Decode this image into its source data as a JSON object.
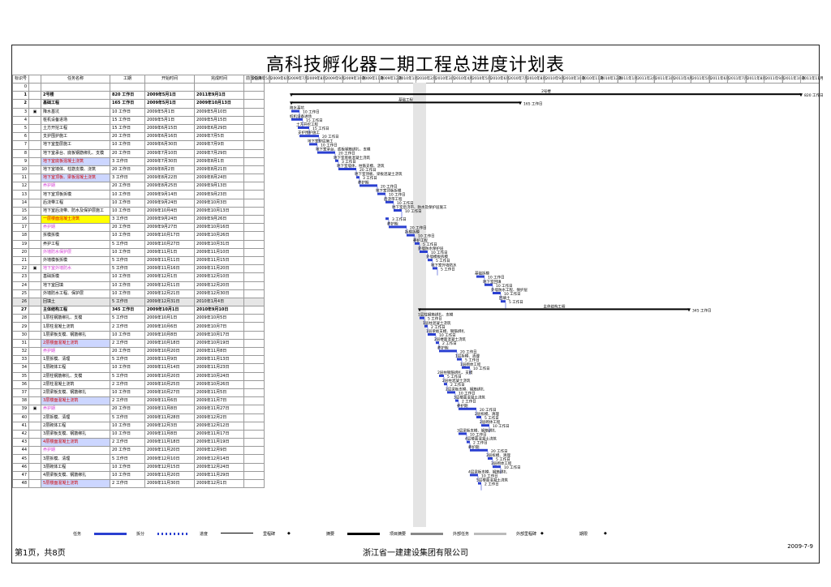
{
  "title": "高科技孵化器二期工程总进度计划表",
  "columns": [
    "标识号",
    "",
    "任务名称",
    "工期",
    "开始时间",
    "完成时间",
    "前置任务"
  ],
  "timescale": [
    "2009年5月",
    "2009年6月",
    "2009年7月",
    "2009年8月",
    "2009年9月",
    "2009年10月",
    "2009年11月",
    "2009年12月",
    "2010年1月",
    "2010年2月",
    "2010年3月",
    "2010年4月",
    "2010年5月",
    "2010年6月",
    "2010年7月",
    "2010年8月",
    "2010年9月",
    "2010年10月",
    "2010年11月",
    "2010年12月",
    "2011年1月",
    "2011年2月",
    "2011年3月",
    "2011年4月",
    "2011年5月",
    "2011年6月",
    "2011年7月",
    "2011年8月",
    "2011年9月",
    "2011年10月",
    "2011年11月"
  ],
  "rows": [
    {
      "id": "0",
      "icon": "",
      "name": "",
      "dur": "",
      "start": "",
      "end": "",
      "pred": "",
      "style": "blank"
    },
    {
      "id": "1",
      "icon": "",
      "name": "2号楼",
      "dur": "820 工作日",
      "start": "2009年5月1日",
      "end": "2011年9月1日",
      "pred": "",
      "style": "sum"
    },
    {
      "id": "2",
      "icon": "",
      "name": "基础工程",
      "dur": "165 工作日",
      "start": "2009年5月1日",
      "end": "2009年10月13日",
      "pred": "",
      "style": "sum"
    },
    {
      "id": "3",
      "icon": "note",
      "name": "降水基坑",
      "dur": "10 工作日",
      "start": "2009年5月1日",
      "end": "2009年5月10日",
      "pred": "",
      "style": ""
    },
    {
      "id": "4",
      "icon": "",
      "name": "桩机设备进场",
      "dur": "15 工作日",
      "start": "2009年5月1日",
      "end": "2009年5月15日",
      "pred": "",
      "style": ""
    },
    {
      "id": "5",
      "icon": "",
      "name": "土方开挖工程",
      "dur": "15 工作日",
      "start": "2009年6月15日",
      "end": "2009年6月29日",
      "pred": "",
      "style": ""
    },
    {
      "id": "6",
      "icon": "",
      "name": "支护围护施工",
      "dur": "20 工作日",
      "start": "2009年6月16日",
      "end": "2009年7月5日",
      "pred": "",
      "style": ""
    },
    {
      "id": "7",
      "icon": "",
      "name": "地下室垫层施工",
      "dur": "10 工作日",
      "start": "2009年6月30日",
      "end": "2009年7月9日",
      "pred": "",
      "style": ""
    },
    {
      "id": "8",
      "icon": "",
      "name": "地下室承台、底板钢筋绑扎、支模",
      "dur": "20 工作日",
      "start": "2009年7月10日",
      "end": "2009年7月29日",
      "pred": "",
      "style": ""
    },
    {
      "id": "9",
      "icon": "",
      "name": "地下室底板混凝土浇筑",
      "dur": "3 工作日",
      "start": "2009年7月30日",
      "end": "2009年8月1日",
      "pred": "",
      "style": "hl-b"
    },
    {
      "id": "10",
      "icon": "",
      "name": "地下室墙体、柱筋支模、浇筑",
      "dur": "20 工作日",
      "start": "2009年8月2日",
      "end": "2009年8月21日",
      "pred": "",
      "style": ""
    },
    {
      "id": "11",
      "icon": "",
      "name": "地下室顶板、梁板混凝土浇筑",
      "dur": "3 工作日",
      "start": "2009年8月22日",
      "end": "2009年8月24日",
      "pred": "",
      "style": "hl-b"
    },
    {
      "id": "12",
      "icon": "",
      "name": "养护期",
      "dur": "20 工作日",
      "start": "2009年8月25日",
      "end": "2009年9月13日",
      "pred": "",
      "style": "pink"
    },
    {
      "id": "13",
      "icon": "",
      "name": "地下室顶板拆模",
      "dur": "10 工作日",
      "start": "2009年9月14日",
      "end": "2009年9月23日",
      "pred": "",
      "style": ""
    },
    {
      "id": "14",
      "icon": "",
      "name": "后浇带工程",
      "dur": "10 工作日",
      "start": "2009年9月24日",
      "end": "2009年10月3日",
      "pred": "",
      "style": ""
    },
    {
      "id": "15",
      "icon": "",
      "name": "地下室后浇带、防水及保护层施工",
      "dur": "10 工作日",
      "start": "2009年10月4日",
      "end": "2009年10月13日",
      "pred": "",
      "style": ""
    },
    {
      "id": "16",
      "icon": "",
      "name": "一层楼面混凝土浇筑",
      "dur": "3 工作日",
      "start": "2009年9月24日",
      "end": "2009年9月26日",
      "pred": "",
      "style": "hl-y"
    },
    {
      "id": "17",
      "icon": "",
      "name": "养护期",
      "dur": "20 工作日",
      "start": "2009年9月27日",
      "end": "2009年10月16日",
      "pred": "",
      "style": "pink"
    },
    {
      "id": "18",
      "icon": "",
      "name": "拆模拆模",
      "dur": "10 工作日",
      "start": "2009年10月17日",
      "end": "2009年10月26日",
      "pred": "",
      "style": ""
    },
    {
      "id": "19",
      "icon": "",
      "name": "养护工程",
      "dur": "5 工作日",
      "start": "2009年10月27日",
      "end": "2009年10月31日",
      "pred": "",
      "style": ""
    },
    {
      "id": "20",
      "icon": "",
      "name": "外墙防水保护层",
      "dur": "10 工作日",
      "start": "2009年11月1日",
      "end": "2009年11月10日",
      "pred": "",
      "style": "pink"
    },
    {
      "id": "21",
      "icon": "",
      "name": "外墙模板拆模",
      "dur": "5 工作日",
      "start": "2009年11月11日",
      "end": "2009年11月15日",
      "pred": "",
      "style": ""
    },
    {
      "id": "22",
      "icon": "note",
      "name": "地下室外墙防水",
      "dur": "5 工作日",
      "start": "2009年11月16日",
      "end": "2009年11月20日",
      "pred": "",
      "style": "pink"
    },
    {
      "id": "23",
      "icon": "",
      "name": "基础拆模",
      "dur": "10 工作日",
      "start": "2009年12月1日",
      "end": "2009年12月10日",
      "pred": "",
      "style": ""
    },
    {
      "id": "24",
      "icon": "",
      "name": "地下室回填",
      "dur": "10 工作日",
      "start": "2009年12月11日",
      "end": "2009年12月20日",
      "pred": "",
      "style": ""
    },
    {
      "id": "25",
      "icon": "",
      "name": "外墙防水工程、保护层",
      "dur": "10 工作日",
      "start": "2009年12月21日",
      "end": "2009年12月30日",
      "pred": "",
      "style": ""
    },
    {
      "id": "26",
      "icon": "",
      "name": "回填土",
      "dur": "5 工作日",
      "start": "2009年12月31日",
      "end": "2010年1月4日",
      "pred": "",
      "style": "hl-g"
    },
    {
      "id": "27",
      "icon": "",
      "name": "主体结构工程",
      "dur": "345 工作日",
      "start": "2009年10月1日",
      "end": "2010年9月10日",
      "pred": "",
      "style": "sum"
    },
    {
      "id": "28",
      "icon": "",
      "name": "1层柱钢筋绑扎、支模",
      "dur": "5 工作日",
      "start": "2009年10月1日",
      "end": "2009年10月5日",
      "pred": "",
      "style": ""
    },
    {
      "id": "29",
      "icon": "",
      "name": "1层柱混凝土浇筑",
      "dur": "2 工作日",
      "start": "2009年10月6日",
      "end": "2009年10月7日",
      "pred": "",
      "style": ""
    },
    {
      "id": "30",
      "icon": "",
      "name": "1层梁板支模、钢筋绑扎",
      "dur": "10 工作日",
      "start": "2009年10月8日",
      "end": "2009年10月17日",
      "pred": "",
      "style": ""
    },
    {
      "id": "31",
      "icon": "",
      "name": "2层楼面混凝土浇筑",
      "dur": "2 工作日",
      "start": "2009年10月18日",
      "end": "2009年10月19日",
      "pred": "",
      "style": "hl-b"
    },
    {
      "id": "32",
      "icon": "",
      "name": "养护期",
      "dur": "20 工作日",
      "start": "2009年10月20日",
      "end": "2009年11月8日",
      "pred": "",
      "style": "pink"
    },
    {
      "id": "33",
      "icon": "",
      "name": "1层拆模、清理",
      "dur": "5 工作日",
      "start": "2009年11月9日",
      "end": "2009年11月13日",
      "pred": "",
      "style": ""
    },
    {
      "id": "34",
      "icon": "",
      "name": "1层砌体工程",
      "dur": "10 工作日",
      "start": "2009年11月14日",
      "end": "2009年11月23日",
      "pred": "",
      "style": ""
    },
    {
      "id": "35",
      "icon": "",
      "name": "2层柱钢筋绑扎、支模",
      "dur": "5 工作日",
      "start": "2009年10月20日",
      "end": "2009年10月24日",
      "pred": "",
      "style": ""
    },
    {
      "id": "36",
      "icon": "",
      "name": "2层柱混凝土浇筑",
      "dur": "2 工作日",
      "start": "2009年10月25日",
      "end": "2009年10月26日",
      "pred": "",
      "style": ""
    },
    {
      "id": "37",
      "icon": "",
      "name": "2层梁板支模、钢筋绑扎",
      "dur": "10 工作日",
      "start": "2009年10月27日",
      "end": "2009年11月5日",
      "pred": "",
      "style": ""
    },
    {
      "id": "38",
      "icon": "",
      "name": "3层楼面混凝土浇筑",
      "dur": "2 工作日",
      "start": "2009年11月6日",
      "end": "2009年11月7日",
      "pred": "",
      "style": "hl-b"
    },
    {
      "id": "39",
      "icon": "note",
      "name": "养护期",
      "dur": "20 工作日",
      "start": "2009年11月8日",
      "end": "2009年11月27日",
      "pred": "",
      "style": "pink"
    },
    {
      "id": "40",
      "icon": "",
      "name": "2层拆模、清理",
      "dur": "5 工作日",
      "start": "2009年11月28日",
      "end": "2009年12月2日",
      "pred": "",
      "style": ""
    },
    {
      "id": "41",
      "icon": "",
      "name": "2层砌体工程",
      "dur": "10 工作日",
      "start": "2009年12月3日",
      "end": "2009年12月12日",
      "pred": "",
      "style": ""
    },
    {
      "id": "42",
      "icon": "",
      "name": "3层梁板支模、钢筋绑扎",
      "dur": "10 工作日",
      "start": "2009年11月8日",
      "end": "2009年11月17日",
      "pred": "",
      "style": ""
    },
    {
      "id": "43",
      "icon": "",
      "name": "4层楼面混凝土浇筑",
      "dur": "2 工作日",
      "start": "2009年11月18日",
      "end": "2009年11月19日",
      "pred": "",
      "style": "hl-b"
    },
    {
      "id": "44",
      "icon": "",
      "name": "养护期",
      "dur": "20 工作日",
      "start": "2009年11月20日",
      "end": "2009年12月9日",
      "pred": "",
      "style": "pink"
    },
    {
      "id": "45",
      "icon": "",
      "name": "3层拆模、清理",
      "dur": "5 工作日",
      "start": "2009年12月10日",
      "end": "2009年12月14日",
      "pred": "",
      "style": ""
    },
    {
      "id": "46",
      "icon": "",
      "name": "3层砌体工程",
      "dur": "10 工作日",
      "start": "2009年12月15日",
      "end": "2009年12月24日",
      "pred": "",
      "style": ""
    },
    {
      "id": "47",
      "icon": "",
      "name": "4层梁板支模、钢筋绑扎",
      "dur": "10 工作日",
      "start": "2009年11月20日",
      "end": "2009年11月29日",
      "pred": "",
      "style": ""
    },
    {
      "id": "48",
      "icon": "",
      "name": "5层楼面混凝土浇筑",
      "dur": "2 工作日",
      "start": "2009年11月30日",
      "end": "2009年12月1日",
      "pred": "",
      "style": "hl-b"
    }
  ],
  "bars": [
    {
      "row": 1,
      "x0": 0,
      "x1": 628,
      "type": "summary",
      "label": "820 工作日",
      "top": "2号楼"
    },
    {
      "row": 2,
      "x0": 0,
      "x1": 282,
      "type": "summary",
      "label": "165 工作日",
      "top": "基础工程"
    },
    {
      "row": 3,
      "x0": 0,
      "x1": 10,
      "type": "task",
      "label": "10 工作日",
      "top": "降水基坑"
    },
    {
      "row": 4,
      "x0": 0,
      "x1": 14,
      "type": "task",
      "label": "15 工作日",
      "top": "桩机设备进场"
    },
    {
      "row": 5,
      "x0": 8,
      "x1": 22,
      "type": "task",
      "label": "15 工作日",
      "top": "土方开挖工程"
    },
    {
      "row": 6,
      "x0": 10,
      "x1": 34,
      "type": "task",
      "label": "20 工作日",
      "top": "支护围护施工"
    },
    {
      "row": 7,
      "x0": 22,
      "x1": 32,
      "type": "task",
      "label": "10 工作日",
      "top": "地下室垫层施工"
    },
    {
      "row": 8,
      "x0": 32,
      "x1": 54,
      "type": "task",
      "label": "20 工作日",
      "top": "地下室承台、底板钢筋绑扎、支模"
    },
    {
      "row": 9,
      "x0": 54,
      "x1": 58,
      "type": "task",
      "label": "3 工作日",
      "top": "地下室底板混凝土浇筑"
    },
    {
      "row": 10,
      "x0": 58,
      "x1": 80,
      "type": "task",
      "label": "20 工作日",
      "top": "地下室墙体、柱筋支模、浇筑"
    },
    {
      "row": 11,
      "x0": 80,
      "x1": 84,
      "type": "task",
      "label": "3 工作日",
      "top": "地下室顶板、梁板混凝土浇筑"
    },
    {
      "row": 12,
      "x0": 84,
      "x1": 106,
      "type": "task",
      "label": "20 工作日",
      "top": "养护期"
    },
    {
      "row": 13,
      "x0": 106,
      "x1": 116,
      "type": "task",
      "label": "10 工作日",
      "top": "地下室顶板拆模"
    },
    {
      "row": 14,
      "x0": 116,
      "x1": 126,
      "type": "task",
      "label": "10 工作日",
      "top": "后浇带工程"
    },
    {
      "row": 15,
      "x0": 126,
      "x1": 136,
      "type": "task",
      "label": "10 工作日",
      "top": "地下室后浇带、防水及保护层施工"
    },
    {
      "row": 16,
      "x0": 116,
      "x1": 120,
      "type": "task",
      "label": "3 工作日",
      "top": ""
    },
    {
      "row": 17,
      "x0": 120,
      "x1": 142,
      "type": "task",
      "label": "20 工作日",
      "top": "养护期"
    },
    {
      "row": 18,
      "x0": 142,
      "x1": 152,
      "type": "task",
      "label": "10 工作日",
      "top": "拆模拆模"
    },
    {
      "row": 19,
      "x0": 152,
      "x1": 158,
      "type": "task",
      "label": "5 工作日",
      "top": "养护工程"
    },
    {
      "row": 20,
      "x0": 158,
      "x1": 168,
      "type": "task",
      "label": "10 工作日",
      "top": "外墙防水保护层"
    },
    {
      "row": 21,
      "x0": 168,
      "x1": 174,
      "type": "task",
      "label": "5 工作日",
      "top": "外墙模板拆模"
    },
    {
      "row": 22,
      "x0": 174,
      "x1": 180,
      "type": "task",
      "label": "5 工作日",
      "top": "地下室外墙防水"
    },
    {
      "row": 23,
      "x0": 228,
      "x1": 238,
      "type": "task",
      "label": "10 工作日",
      "top": "基础拆模"
    },
    {
      "row": 24,
      "x0": 238,
      "x1": 248,
      "type": "task",
      "label": "10 工作日",
      "top": "地下室回填"
    },
    {
      "row": 25,
      "x0": 248,
      "x1": 258,
      "type": "task",
      "label": "10 工作日",
      "top": "外墙防水工程、保护层"
    },
    {
      "row": 26,
      "x0": 258,
      "x1": 264,
      "type": "task",
      "label": "5 工作日",
      "top": "回填土"
    },
    {
      "row": 27,
      "x0": 158,
      "x1": 490,
      "type": "summary",
      "label": "345 工作日",
      "top": "主体结构工程"
    },
    {
      "row": 28,
      "x0": 158,
      "x1": 164,
      "type": "task",
      "label": "5 工作日",
      "top": "1层柱钢筋绑扎、支模"
    },
    {
      "row": 29,
      "x0": 164,
      "x1": 168,
      "type": "task",
      "label": "2 工作日",
      "top": "1层柱混凝土浇筑"
    },
    {
      "row": 30,
      "x0": 168,
      "x1": 178,
      "type": "task",
      "label": "10 工作日",
      "top": "1层梁板支模、钢筋绑扎"
    },
    {
      "row": 31,
      "x0": 178,
      "x1": 182,
      "type": "task",
      "label": "2 工作日",
      "top": "2层楼面混凝土浇筑"
    },
    {
      "row": 32,
      "x0": 182,
      "x1": 204,
      "type": "task",
      "label": "20 工作日",
      "top": "养护期"
    },
    {
      "row": 33,
      "x0": 204,
      "x1": 210,
      "type": "task",
      "label": "5 工作日",
      "top": "1层拆模、清理"
    },
    {
      "row": 34,
      "x0": 210,
      "x1": 220,
      "type": "task",
      "label": "10 工作日",
      "top": "1层砌体工程"
    },
    {
      "row": 35,
      "x0": 182,
      "x1": 188,
      "type": "task",
      "label": "5 工作日",
      "top": "2层柱钢筋绑扎、支模"
    },
    {
      "row": 36,
      "x0": 188,
      "x1": 192,
      "type": "task",
      "label": "2 工作日",
      "top": "2层柱混凝土浇筑"
    },
    {
      "row": 37,
      "x0": 192,
      "x1": 202,
      "type": "task",
      "label": "10 工作日",
      "top": "2层梁板支模、钢筋绑扎"
    },
    {
      "row": 38,
      "x0": 202,
      "x1": 206,
      "type": "task",
      "label": "2 工作日",
      "top": "3层楼面混凝土浇筑"
    },
    {
      "row": 39,
      "x0": 206,
      "x1": 228,
      "type": "task",
      "label": "20 工作日",
      "top": "养护期"
    },
    {
      "row": 40,
      "x0": 228,
      "x1": 234,
      "type": "task",
      "label": "5 工作日",
      "top": "2层拆模、清理"
    },
    {
      "row": 41,
      "x0": 234,
      "x1": 244,
      "type": "task",
      "label": "10 工作日",
      "top": "2层砌体工程"
    },
    {
      "row": 42,
      "x0": 206,
      "x1": 216,
      "type": "task",
      "label": "10 工作日",
      "top": "3层梁板支模、钢筋绑扎"
    },
    {
      "row": 43,
      "x0": 216,
      "x1": 220,
      "type": "task",
      "label": "2 工作日",
      "top": "4层楼面混凝土浇筑"
    },
    {
      "row": 44,
      "x0": 220,
      "x1": 242,
      "type": "task",
      "label": "20 工作日",
      "top": "养护期"
    },
    {
      "row": 45,
      "x0": 242,
      "x1": 248,
      "type": "task",
      "label": "5 工作日",
      "top": "3层拆模、清理"
    },
    {
      "row": 46,
      "x0": 248,
      "x1": 258,
      "type": "task",
      "label": "10 工作日",
      "top": "3层砌体工程"
    },
    {
      "row": 47,
      "x0": 220,
      "x1": 230,
      "type": "task",
      "label": "10 工作日",
      "top": "4层梁板支模、钢筋绑扎"
    },
    {
      "row": 48,
      "x0": 230,
      "x1": 234,
      "type": "task",
      "label": "2 工作日",
      "top": "5层楼面混凝土浇筑"
    }
  ],
  "legend": [
    "任务",
    "拆分",
    "进度",
    "里程碑",
    "摘要",
    "项目摘要",
    "外部任务",
    "外部里程碑",
    "期限"
  ],
  "footer": {
    "page": "第1页，共8页",
    "company": "浙江省一建建设集团有限公司",
    "date": "2009-7-9"
  },
  "colors": {
    "task_bar": "#2a3fd1",
    "summary_bar": "#000000",
    "highlight_yellow": "#ffff00",
    "highlight_blue": "#ccd6ff"
  }
}
